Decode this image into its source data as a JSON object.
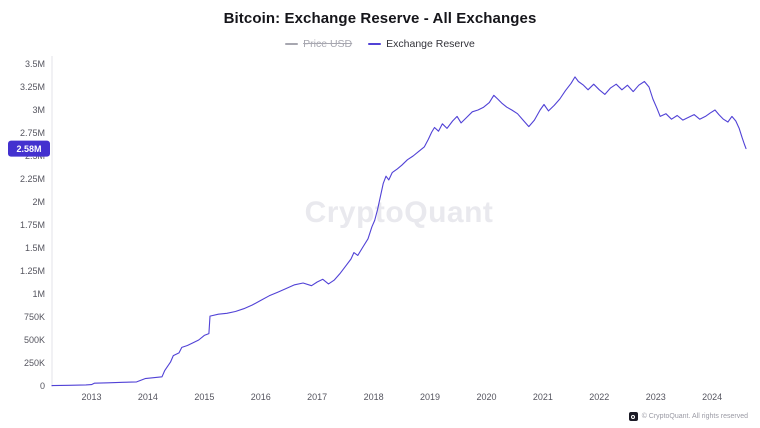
{
  "header": {
    "title": "Bitcoin: Exchange Reserve - All Exchanges"
  },
  "legend": [
    {
      "label": "Price USD",
      "color": "#a7a7b0",
      "disabled": true
    },
    {
      "label": "Exchange Reserve",
      "color": "#5142d6",
      "disabled": false
    }
  ],
  "badge": {
    "label": "2.58M",
    "color": "#4331cf"
  },
  "watermark": "CryptoQuant",
  "footer": {
    "copyright": "© CryptoQuant. All rights reserved"
  },
  "chart_data": {
    "type": "line",
    "title": "Bitcoin: Exchange Reserve - All Exchanges",
    "xlabel": "",
    "ylabel": "",
    "grid": false,
    "legend_position": "top",
    "xlim": [
      2012.3,
      2024.6
    ],
    "ylim": [
      0,
      3.5
    ],
    "x_ticks": [
      2013,
      2014,
      2015,
      2016,
      2017,
      2018,
      2019,
      2020,
      2021,
      2022,
      2023,
      2024
    ],
    "y_ticks": [
      {
        "value": 0,
        "label": "0"
      },
      {
        "value": 0.25,
        "label": "250K"
      },
      {
        "value": 0.5,
        "label": "500K"
      },
      {
        "value": 0.75,
        "label": "750K"
      },
      {
        "value": 1,
        "label": "1M"
      },
      {
        "value": 1.25,
        "label": "1.25M"
      },
      {
        "value": 1.5,
        "label": "1.5M"
      },
      {
        "value": 1.75,
        "label": "1.75M"
      },
      {
        "value": 2,
        "label": "2M"
      },
      {
        "value": 2.25,
        "label": "2.25M"
      },
      {
        "value": 2.5,
        "label": "2.5M"
      },
      {
        "value": 2.75,
        "label": "2.75M"
      },
      {
        "value": 3,
        "label": "3M"
      },
      {
        "value": 3.25,
        "label": "3.25M"
      },
      {
        "value": 3.5,
        "label": "3.5M"
      }
    ],
    "y_unit": "BTC (millions)",
    "current_value": 2.58,
    "current_value_label": "2.58M",
    "series": [
      {
        "name": "Exchange Reserve",
        "color": "#5142d6",
        "points": [
          [
            2012.3,
            0.004
          ],
          [
            2012.6,
            0.008
          ],
          [
            2012.9,
            0.012
          ],
          [
            2013.0,
            0.015
          ],
          [
            2013.05,
            0.03
          ],
          [
            2013.3,
            0.035
          ],
          [
            2013.55,
            0.04
          ],
          [
            2013.8,
            0.045
          ],
          [
            2013.95,
            0.08
          ],
          [
            2014.1,
            0.09
          ],
          [
            2014.25,
            0.1
          ],
          [
            2014.3,
            0.17
          ],
          [
            2014.4,
            0.26
          ],
          [
            2014.45,
            0.33
          ],
          [
            2014.55,
            0.36
          ],
          [
            2014.6,
            0.42
          ],
          [
            2014.7,
            0.44
          ],
          [
            2014.8,
            0.47
          ],
          [
            2014.9,
            0.5
          ],
          [
            2015.0,
            0.55
          ],
          [
            2015.08,
            0.57
          ],
          [
            2015.1,
            0.76
          ],
          [
            2015.25,
            0.78
          ],
          [
            2015.4,
            0.79
          ],
          [
            2015.55,
            0.81
          ],
          [
            2015.7,
            0.84
          ],
          [
            2015.85,
            0.88
          ],
          [
            2016.0,
            0.93
          ],
          [
            2016.15,
            0.98
          ],
          [
            2016.3,
            1.02
          ],
          [
            2016.45,
            1.06
          ],
          [
            2016.6,
            1.1
          ],
          [
            2016.75,
            1.12
          ],
          [
            2016.9,
            1.09
          ],
          [
            2017.0,
            1.13
          ],
          [
            2017.1,
            1.16
          ],
          [
            2017.2,
            1.11
          ],
          [
            2017.3,
            1.15
          ],
          [
            2017.4,
            1.22
          ],
          [
            2017.5,
            1.3
          ],
          [
            2017.6,
            1.38
          ],
          [
            2017.65,
            1.45
          ],
          [
            2017.72,
            1.42
          ],
          [
            2017.8,
            1.5
          ],
          [
            2017.9,
            1.6
          ],
          [
            2017.97,
            1.73
          ],
          [
            2018.02,
            1.8
          ],
          [
            2018.07,
            1.92
          ],
          [
            2018.12,
            2.06
          ],
          [
            2018.17,
            2.2
          ],
          [
            2018.22,
            2.28
          ],
          [
            2018.27,
            2.24
          ],
          [
            2018.33,
            2.32
          ],
          [
            2018.42,
            2.36
          ],
          [
            2018.5,
            2.4
          ],
          [
            2018.6,
            2.46
          ],
          [
            2018.7,
            2.5
          ],
          [
            2018.8,
            2.55
          ],
          [
            2018.9,
            2.6
          ],
          [
            2018.97,
            2.68
          ],
          [
            2019.03,
            2.76
          ],
          [
            2019.08,
            2.81
          ],
          [
            2019.15,
            2.77
          ],
          [
            2019.22,
            2.85
          ],
          [
            2019.3,
            2.8
          ],
          [
            2019.4,
            2.88
          ],
          [
            2019.48,
            2.93
          ],
          [
            2019.55,
            2.86
          ],
          [
            2019.65,
            2.92
          ],
          [
            2019.75,
            2.98
          ],
          [
            2019.85,
            3.0
          ],
          [
            2019.95,
            3.03
          ],
          [
            2020.05,
            3.08
          ],
          [
            2020.13,
            3.16
          ],
          [
            2020.2,
            3.12
          ],
          [
            2020.28,
            3.07
          ],
          [
            2020.36,
            3.03
          ],
          [
            2020.45,
            3.0
          ],
          [
            2020.55,
            2.96
          ],
          [
            2020.65,
            2.89
          ],
          [
            2020.75,
            2.82
          ],
          [
            2020.85,
            2.89
          ],
          [
            2020.95,
            3.0
          ],
          [
            2021.02,
            3.06
          ],
          [
            2021.1,
            2.99
          ],
          [
            2021.2,
            3.05
          ],
          [
            2021.3,
            3.12
          ],
          [
            2021.4,
            3.21
          ],
          [
            2021.5,
            3.29
          ],
          [
            2021.57,
            3.36
          ],
          [
            2021.63,
            3.31
          ],
          [
            2021.72,
            3.27
          ],
          [
            2021.8,
            3.22
          ],
          [
            2021.9,
            3.28
          ],
          [
            2022.0,
            3.22
          ],
          [
            2022.1,
            3.17
          ],
          [
            2022.2,
            3.24
          ],
          [
            2022.3,
            3.28
          ],
          [
            2022.4,
            3.22
          ],
          [
            2022.5,
            3.27
          ],
          [
            2022.6,
            3.2
          ],
          [
            2022.7,
            3.27
          ],
          [
            2022.8,
            3.31
          ],
          [
            2022.88,
            3.25
          ],
          [
            2022.95,
            3.12
          ],
          [
            2023.02,
            3.02
          ],
          [
            2023.08,
            2.93
          ],
          [
            2023.18,
            2.96
          ],
          [
            2023.28,
            2.9
          ],
          [
            2023.38,
            2.94
          ],
          [
            2023.48,
            2.89
          ],
          [
            2023.58,
            2.92
          ],
          [
            2023.68,
            2.95
          ],
          [
            2023.78,
            2.9
          ],
          [
            2023.88,
            2.93
          ],
          [
            2023.97,
            2.97
          ],
          [
            2024.05,
            3.0
          ],
          [
            2024.12,
            2.95
          ],
          [
            2024.2,
            2.9
          ],
          [
            2024.28,
            2.87
          ],
          [
            2024.35,
            2.93
          ],
          [
            2024.42,
            2.88
          ],
          [
            2024.48,
            2.8
          ],
          [
            2024.53,
            2.7
          ],
          [
            2024.57,
            2.63
          ],
          [
            2024.6,
            2.58
          ]
        ]
      }
    ]
  }
}
